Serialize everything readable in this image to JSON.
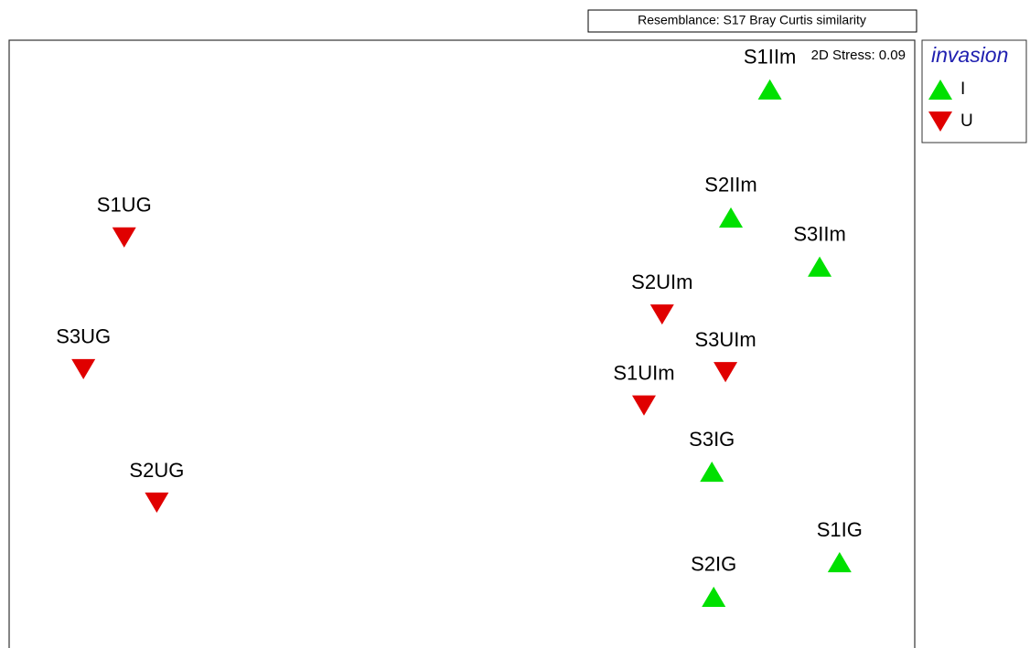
{
  "chart_data": {
    "type": "scatter",
    "title": "Resemblance: S17 Bray Curtis similarity",
    "annotation": "2D Stress: 0.09",
    "legend_title": "invasion",
    "legend": "outside-right",
    "xlim": [
      0,
      100
    ],
    "ylim": [
      0,
      100
    ],
    "series": [
      {
        "name": "I",
        "color": "#00e000",
        "marker": "triangle-up",
        "labels": [
          "S1IIm",
          "S2IIm",
          "S3IIm",
          "S3IG",
          "S1IG",
          "S2IG"
        ],
        "x": [
          84.0,
          79.7,
          89.5,
          77.6,
          91.7,
          77.8
        ],
        "y": [
          91.9,
          70.8,
          62.7,
          28.9,
          14.0,
          8.3
        ]
      },
      {
        "name": "U",
        "color": "#e00000",
        "marker": "triangle-down",
        "labels": [
          "S2UIm",
          "S3UIm",
          "S1UIm",
          "S1UG",
          "S3UG",
          "S2UG"
        ],
        "x": [
          72.1,
          79.1,
          70.1,
          12.7,
          8.2,
          16.3
        ],
        "y": [
          54.8,
          45.3,
          39.8,
          67.5,
          45.8,
          23.8
        ]
      }
    ]
  }
}
